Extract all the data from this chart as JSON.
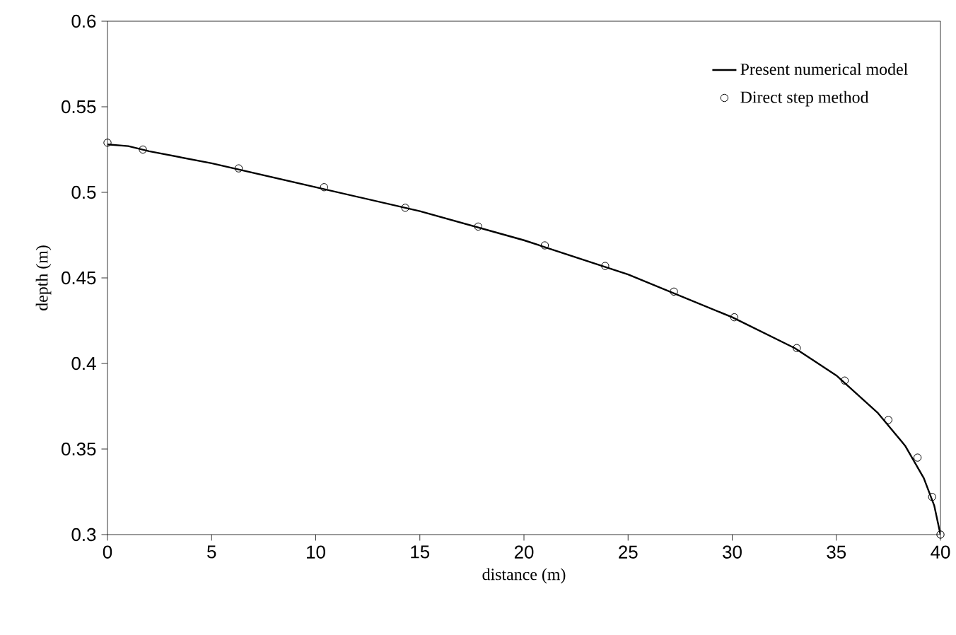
{
  "chart_data": {
    "type": "line",
    "xlabel": "distance (m)",
    "ylabel": "depth (m)",
    "xlim": [
      0,
      40
    ],
    "ylim": [
      0.3,
      0.6
    ],
    "xticks": [
      0,
      5,
      10,
      15,
      20,
      25,
      30,
      35,
      40
    ],
    "yticks": [
      0.3,
      0.35,
      0.4,
      0.45,
      0.5,
      0.55,
      0.6
    ],
    "grid": false,
    "legend": "top right",
    "series": [
      {
        "name": "Present numerical model",
        "color": "#000000",
        "marker": "none",
        "line_style": "solid",
        "x": [
          0,
          1,
          2,
          5,
          10,
          15,
          20,
          25,
          30,
          33,
          35,
          37,
          38.3,
          39.2,
          39.7,
          40
        ],
        "values": [
          0.528,
          0.527,
          0.524,
          0.517,
          0.503,
          0.489,
          0.472,
          0.452,
          0.427,
          0.409,
          0.393,
          0.371,
          0.352,
          0.333,
          0.317,
          0.3
        ]
      },
      {
        "name": "Direct step method",
        "type": "scatter",
        "color": "#000000",
        "marker": "circle",
        "x": [
          0,
          1.7,
          6.3,
          10.4,
          14.3,
          17.8,
          21,
          23.9,
          27.2,
          30.1,
          33.1,
          35.4,
          37.5,
          38.9,
          39.6,
          40
        ],
        "values": [
          0.529,
          0.525,
          0.514,
          0.503,
          0.491,
          0.48,
          0.469,
          0.457,
          0.442,
          0.427,
          0.409,
          0.39,
          0.367,
          0.345,
          0.322,
          0.3
        ]
      }
    ]
  }
}
